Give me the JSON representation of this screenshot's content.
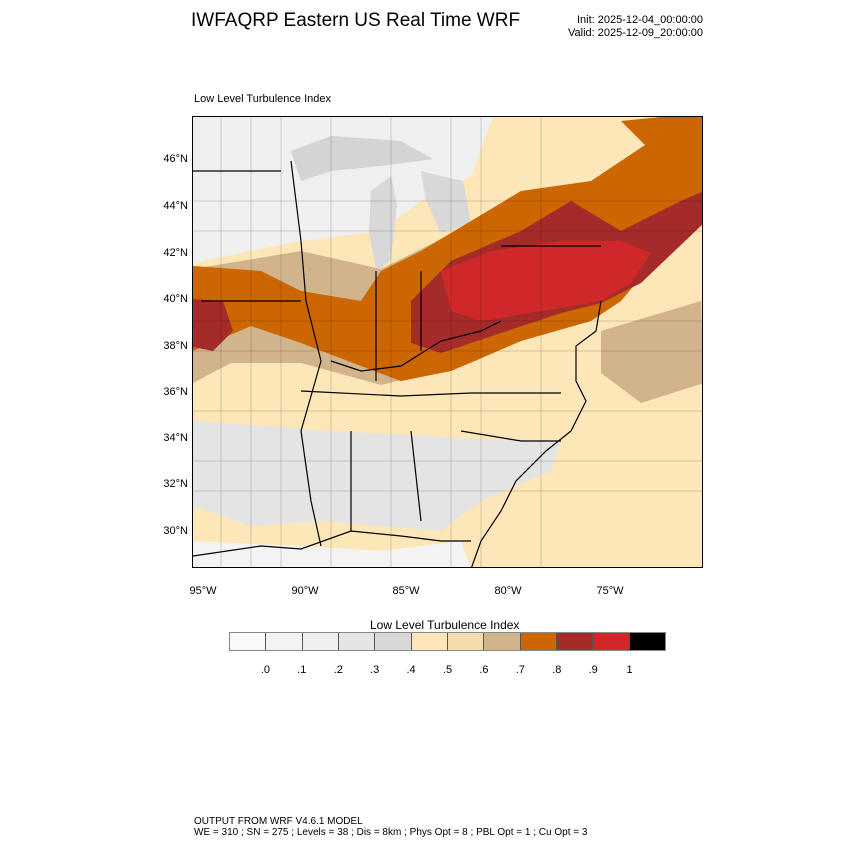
{
  "header": {
    "title": "IWFAQRP Eastern US Real Time WRF",
    "init": "Init: 2025-12-04_00:00:00",
    "valid": "Valid: 2025-12-09_20:00:00"
  },
  "plot": {
    "subtitle": "Low Level Turbulence Index",
    "lat_labels": [
      "46°N",
      "44°N",
      "42°N",
      "40°N",
      "38°N",
      "36°N",
      "34°N",
      "32°N",
      "30°N"
    ],
    "lon_labels": [
      "95°W",
      "90°W",
      "85°W",
      "80°W",
      "75°W"
    ]
  },
  "colorbar": {
    "title": "Low Level Turbulence Index",
    "labels": [
      ".0",
      ".1",
      ".2",
      ".3",
      ".4",
      ".5",
      ".6",
      ".7",
      ".8",
      ".9",
      "1"
    ],
    "colors": [
      "#fafafa",
      "#f3f3f3",
      "#efefef",
      "#e4e4e4",
      "#d8d8d8",
      "#fee6b8",
      "#f3dcae",
      "#d2b48c",
      "#cc6600",
      "#a52a2a",
      "#d0272a",
      "#000000"
    ]
  },
  "footer": {
    "line1": "OUTPUT FROM WRF V4.6.1 MODEL",
    "line2": "WE = 310 ; SN = 275 ; Levels = 38 ; Dis = 8km ; Phys Opt = 8 ; PBL Opt = 1 ; Cu Opt = 3"
  }
}
